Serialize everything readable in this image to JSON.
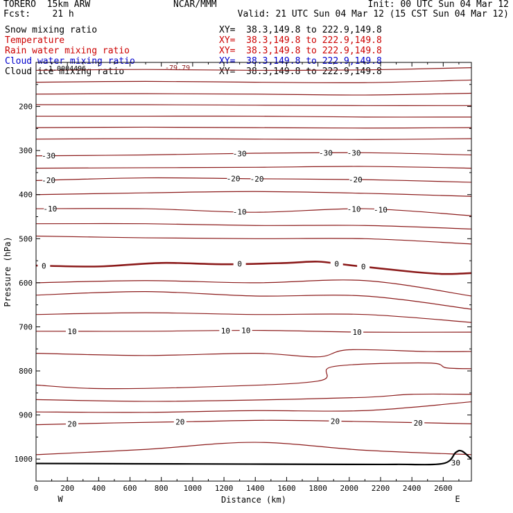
{
  "header": {
    "left1": "TORERO  15km ARW",
    "left2": "Fcst:    21 h",
    "center": "NCAR/MMM",
    "init": "Init: 00 UTC Sun 04 Mar 12",
    "valid": "Valid: 21 UTC Sun 04 Mar 12 (15 CST Sun 04 Mar 12)"
  },
  "fields": [
    {
      "name": "Snow mixing ratio",
      "xy": "XY=  38.3,149.8 to 222.9,149.8",
      "color": "#000000"
    },
    {
      "name": "Temperature",
      "xy": "XY=  38.3,149.8 to 222.9,149.8",
      "color": "#cc0000"
    },
    {
      "name": "Rain water mixing ratio",
      "xy": "XY=  38.3,149.8 to 222.9,149.8",
      "color": "#cc0000"
    },
    {
      "name": "Cloud water mixing ratio",
      "xy": "XY=  38.3,149.8 to 222.9,149.8",
      "color": "#0000cc"
    },
    {
      "name": "Cloud ice mixing ratio",
      "xy": "XY=  38.3,149.8 to 222.9,149.8",
      "color": "#000000"
    }
  ],
  "chart_data": {
    "type": "line",
    "title": "",
    "xlabel": "Distance (km)",
    "ylabel": "Pressure (hPa)",
    "xlim": [
      0,
      2780
    ],
    "ylim": [
      1050,
      100
    ],
    "x_ticks": [
      0,
      200,
      400,
      600,
      800,
      1000,
      1200,
      1400,
      1600,
      1800,
      2000,
      2200,
      2400,
      2600
    ],
    "y_ticks": [
      200,
      300,
      400,
      500,
      600,
      700,
      800,
      900,
      1000
    ],
    "x_end_labels": {
      "left": "W",
      "right": "E"
    },
    "top_annotations": [
      "1.0004496",
      "-79.79"
    ],
    "contour_color": "#8b1a1a",
    "contours": [
      {
        "x": [
          0,
          700,
          1400,
          2100,
          2780
        ],
        "p": [
          118,
          116,
          118,
          117,
          112
        ]
      },
      {
        "x": [
          0,
          700,
          1400,
          2100,
          2780
        ],
        "p": [
          145,
          143,
          145,
          146,
          140
        ]
      },
      {
        "x": [
          0,
          700,
          1400,
          2100,
          2780
        ],
        "p": [
          172,
          171,
          172,
          174,
          170
        ]
      },
      {
        "x": [
          0,
          700,
          1400,
          2100,
          2780
        ],
        "p": [
          196,
          196,
          197,
          198,
          198
        ]
      },
      {
        "x": [
          0,
          700,
          1400,
          2100,
          2780
        ],
        "p": [
          222,
          222,
          222,
          224,
          224
        ]
      },
      {
        "x": [
          0,
          700,
          1400,
          2100,
          2780
        ],
        "p": [
          248,
          247,
          248,
          249,
          248
        ]
      },
      {
        "x": [
          0,
          700,
          1400,
          2100,
          2780
        ],
        "p": [
          274,
          273,
          274,
          275,
          273
        ]
      },
      {
        "x": [
          0,
          700,
          1400,
          2100,
          2780
        ],
        "p": [
          312,
          310,
          306,
          305,
          310
        ],
        "label": "-30",
        "label_x": [
          80,
          1300,
          1850,
          2030
        ]
      },
      {
        "x": [
          0,
          700,
          1400,
          2100,
          2780
        ],
        "p": [
          340,
          339,
          338,
          336,
          340
        ]
      },
      {
        "x": [
          0,
          700,
          1400,
          2100,
          2780
        ],
        "p": [
          368,
          362,
          364,
          366,
          372
        ],
        "label": "-20",
        "label_x": [
          80,
          1260,
          1410,
          2040
        ]
      },
      {
        "x": [
          0,
          700,
          1400,
          2100,
          2780
        ],
        "p": [
          400,
          396,
          393,
          397,
          404
        ]
      },
      {
        "x": [
          0,
          700,
          1400,
          2100,
          2780
        ],
        "p": [
          432,
          432,
          440,
          432,
          448
        ],
        "label": "-10",
        "label_x": [
          90,
          1300,
          2030,
          2200
        ]
      },
      {
        "x": [
          0,
          700,
          1400,
          2100,
          2780
        ],
        "p": [
          466,
          466,
          470,
          470,
          478
        ]
      },
      {
        "x": [
          0,
          700,
          1400,
          2100,
          2780
        ],
        "p": [
          494,
          498,
          500,
          500,
          512
        ]
      },
      {
        "x": [
          0,
          400,
          800,
          1200,
          1600,
          1800,
          2000,
          2400,
          2600,
          2780
        ],
        "p": [
          561,
          563,
          555,
          558,
          555,
          552,
          560,
          575,
          580,
          578
        ],
        "label": "0",
        "label_x": [
          50,
          1300,
          1920,
          2090
        ],
        "bold": true
      },
      {
        "x": [
          0,
          700,
          1400,
          2100,
          2780
        ],
        "p": [
          600,
          595,
          600,
          595,
          630
        ]
      },
      {
        "x": [
          0,
          700,
          1400,
          2100,
          2780
        ],
        "p": [
          628,
          620,
          630,
          630,
          660
        ]
      },
      {
        "x": [
          0,
          700,
          1400,
          2100,
          2780
        ],
        "p": [
          672,
          668,
          672,
          672,
          690
        ]
      },
      {
        "x": [
          0,
          700,
          1400,
          2100,
          2780
        ],
        "p": [
          710,
          710,
          708,
          712,
          712
        ],
        "label": "10",
        "label_x": [
          230,
          1210,
          1340,
          2050
        ]
      },
      {
        "x": [
          0,
          700,
          1400,
          1800,
          2000,
          2500,
          2780
        ],
        "p": [
          760,
          765,
          760,
          768,
          752,
          756,
          756
        ]
      },
      {
        "x": [
          0,
          400,
          1100,
          1800,
          1900,
          2500,
          2620,
          2780
        ],
        "p": [
          832,
          840,
          836,
          823,
          790,
          782,
          793,
          795
        ]
      },
      {
        "x": [
          0,
          700,
          1400,
          2100,
          2400,
          2780
        ],
        "p": [
          865,
          869,
          866,
          860,
          853,
          853
        ]
      },
      {
        "x": [
          0,
          700,
          1400,
          2100,
          2780
        ],
        "p": [
          893,
          894,
          890,
          890,
          870
        ]
      },
      {
        "x": [
          0,
          500,
          1000,
          1500,
          2100,
          2780
        ],
        "p": [
          922,
          918,
          915,
          912,
          915,
          920
        ],
        "label": "20",
        "label_x": [
          230,
          920,
          1910,
          2440
        ]
      },
      {
        "x": [
          0,
          700,
          1400,
          2100,
          2780
        ],
        "p": [
          990,
          978,
          962,
          980,
          990
        ]
      }
    ],
    "ground": {
      "x": [
        0,
        1000,
        2000,
        2300,
        2600,
        2680,
        2720,
        2780
      ],
      "p": [
        1010,
        1011,
        1012,
        1012,
        1010,
        985,
        982,
        1000
      ]
    },
    "small_labels": [
      {
        "text": "30",
        "x": 2680,
        "p": 1008
      }
    ]
  }
}
